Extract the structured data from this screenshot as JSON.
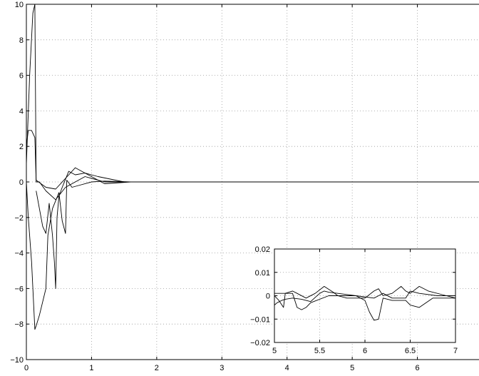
{
  "chart_data": [
    {
      "type": "line",
      "title": "",
      "xlabel": "",
      "ylabel": "",
      "xlim": [
        0,
        7
      ],
      "ylim": [
        -10,
        10
      ],
      "grid": true,
      "xticks": [
        0,
        1,
        2,
        3,
        4,
        5,
        6,
        7
      ],
      "yticks": [
        10,
        8,
        6,
        4,
        2,
        0,
        -2,
        -4,
        -6,
        -8,
        -10
      ],
      "xtick_labels": [
        "0",
        "1",
        "2",
        "3",
        "4",
        "5",
        "6",
        "7"
      ],
      "ytick_labels": [
        "10",
        "8",
        "6",
        "4",
        "2",
        "0",
        "−2",
        "−4",
        "−6",
        "−8",
        "−10"
      ],
      "series": [
        {
          "x": [
            0,
            0.05,
            0.1,
            0.13,
            0.15,
            0.2,
            0.3,
            0.45,
            0.6,
            0.9,
            1.2,
            2,
            7
          ],
          "y": [
            1,
            6,
            9.5,
            10,
            0,
            0,
            -0.5,
            -1,
            -0.3,
            0.3,
            0,
            0,
            0
          ]
        },
        {
          "x": [
            0,
            0.03,
            0.08,
            0.13,
            0.15,
            0.3,
            0.45,
            0.6,
            0.75,
            0.9,
            1.1,
            1.5,
            7
          ],
          "y": [
            2,
            2.9,
            2.9,
            2.5,
            0.1,
            -0.3,
            -0.4,
            0.2,
            0.8,
            0.5,
            0.3,
            0,
            0
          ]
        },
        {
          "x": [
            0,
            0.03,
            0.08,
            0.13,
            0.15,
            0.2,
            0.3,
            0.33,
            0.4,
            0.5,
            0.55,
            0.6,
            0.62,
            0.7,
            0.8,
            1.0,
            1.2,
            1.6,
            7
          ],
          "y": [
            0,
            -2,
            -4.5,
            -8.3,
            -8.1,
            -7.5,
            -6,
            -3,
            -1.5,
            -0.6,
            -2.2,
            -2.9,
            0.1,
            -0.3,
            -0.2,
            0,
            0.05,
            0,
            0
          ]
        },
        {
          "x": [
            0.15,
            0.2,
            0.25,
            0.3,
            0.35,
            0.4,
            0.43,
            0.45,
            0.47,
            0.5,
            0.55,
            0.65,
            0.75,
            0.9,
            1.0,
            1.2,
            1.6,
            7
          ],
          "y": [
            -0.5,
            -1.5,
            -2.5,
            -2.9,
            -1.2,
            -3,
            -4.5,
            -6,
            -2,
            -0.8,
            -0.3,
            0.6,
            0.4,
            0.5,
            0.3,
            -0.1,
            0,
            0
          ]
        }
      ]
    },
    {
      "type": "line",
      "title": "",
      "xlabel": "",
      "ylabel": "",
      "xlim": [
        5,
        7
      ],
      "ylim": [
        -0.02,
        0.02
      ],
      "grid": true,
      "xticks": [
        5,
        5.5,
        6,
        6.5,
        7
      ],
      "yticks": [
        0.02,
        0.01,
        0,
        -0.01,
        -0.02
      ],
      "xtick_labels": [
        "5",
        "5.5",
        "6",
        "6.5",
        "7"
      ],
      "ytick_labels": [
        "0.02",
        "0.01",
        "0",
        "−0.01",
        "−0.02"
      ],
      "series": [
        {
          "x": [
            5,
            5.05,
            5.1,
            5.12,
            5.2,
            5.25,
            5.35,
            5.45,
            5.55,
            5.65,
            5.7,
            5.8,
            6.0,
            6.1,
            6.15,
            6.2,
            6.3,
            6.4,
            6.45,
            6.5,
            6.6,
            6.7,
            6.9,
            7
          ],
          "y": [
            0,
            -0.002,
            -0.005,
            0.001,
            0.002,
            0.001,
            -0.001,
            0.001,
            0.004,
            0.0015,
            0,
            -0.001,
            -0.001,
            0.002,
            0.003,
            0,
            0.001,
            0.004,
            0.002,
            0.001,
            0.004,
            0.002,
            0,
            -0.001
          ]
        },
        {
          "x": [
            5,
            5.03,
            5.08,
            5.12,
            5.2,
            5.3,
            5.4,
            5.5,
            5.55,
            5.6,
            5.7,
            5.9,
            6.1,
            6.15,
            6.2,
            6.3,
            6.45,
            6.5,
            6.6,
            6.8,
            7
          ],
          "y": [
            -0.004,
            -0.003,
            -0.002,
            -0.0015,
            -0.001,
            -0.0015,
            -0.0025,
            0.001,
            0.002,
            0.0015,
            0.001,
            0,
            -0.001,
            0,
            0.001,
            -0.001,
            -0.001,
            0.002,
            0.001,
            0,
            0
          ]
        },
        {
          "x": [
            5,
            5.2,
            5.25,
            5.3,
            5.35,
            5.4,
            5.6,
            5.9,
            6.0,
            6.05,
            6.1,
            6.15,
            6.2,
            6.3,
            6.45,
            6.5,
            6.6,
            6.75,
            6.9,
            7
          ],
          "y": [
            0.001,
            0.001,
            -0.005,
            -0.006,
            -0.005,
            -0.003,
            0,
            0,
            -0.002,
            -0.007,
            -0.0105,
            -0.01,
            -0.001,
            -0.002,
            -0.002,
            -0.004,
            -0.005,
            -0.001,
            -0.001,
            -0.001
          ]
        }
      ]
    }
  ]
}
